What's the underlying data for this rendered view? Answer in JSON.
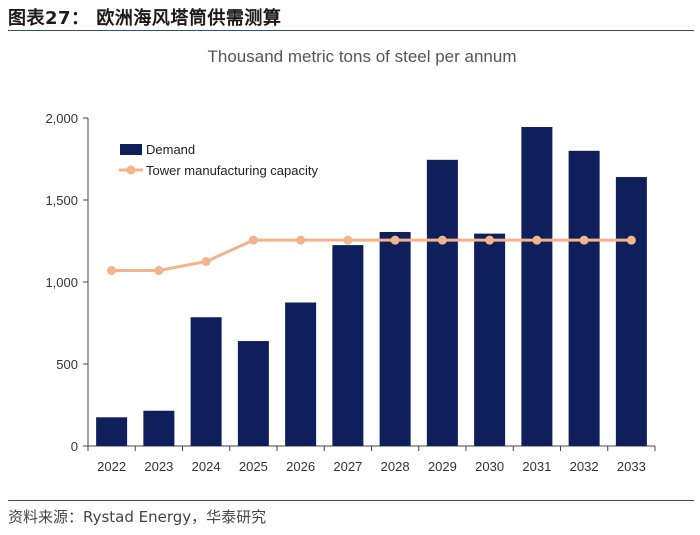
{
  "figure": {
    "title": "图表27： 欧洲海风塔筒供需测算",
    "source": "资料来源：Rystad Energy，华泰研究"
  },
  "colors": {
    "demand": "#0f1f5c",
    "capacity": "#f2b48c",
    "rule": "#2a4f8f",
    "axis": "#444444"
  },
  "chart_data": {
    "type": "bar",
    "title": "Thousand metric tons of steel per annum",
    "categories": [
      "2022",
      "2023",
      "2024",
      "2025",
      "2026",
      "2027",
      "2028",
      "2029",
      "2030",
      "2031",
      "2032",
      "2033"
    ],
    "series": [
      {
        "name": "Demand",
        "kind": "bar",
        "values": [
          175,
          215,
          785,
          640,
          875,
          1225,
          1305,
          1745,
          1295,
          1945,
          1800,
          1640
        ]
      },
      {
        "name": "Tower manufacturing capacity",
        "kind": "line",
        "values": [
          1070,
          1070,
          1125,
          1255,
          1255,
          1255,
          1255,
          1255,
          1255,
          1255,
          1255,
          1255
        ]
      }
    ],
    "yticks": [
      0,
      500,
      1000,
      1500,
      2000
    ],
    "ytick_labels": [
      "0",
      "500",
      "1,000",
      "1,500",
      "2,000"
    ],
    "ylim": [
      0,
      2000
    ],
    "xlabel": "",
    "ylabel": "",
    "legend": "top-left",
    "grid": false
  }
}
